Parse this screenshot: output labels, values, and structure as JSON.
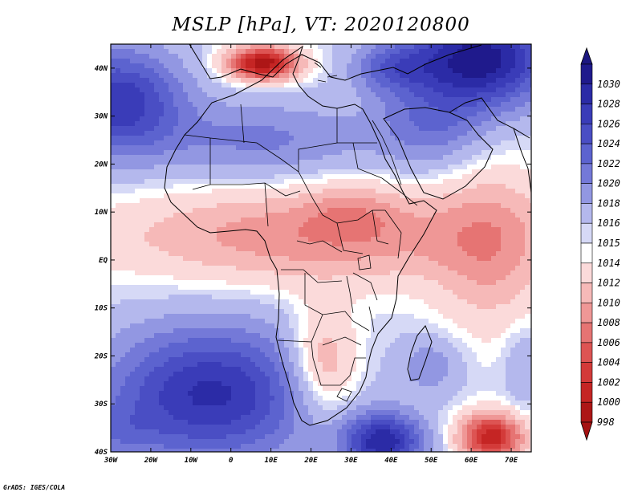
{
  "title": "MSLP [hPa], VT: 2020120800",
  "credit": "GrADS: IGES/COLA",
  "axes": {
    "x_ticks": [
      "30W",
      "20W",
      "10W",
      "0",
      "10E",
      "20E",
      "30E",
      "40E",
      "50E",
      "60E",
      "70E"
    ],
    "y_ticks": [
      "40S",
      "30S",
      "20S",
      "10S",
      "EQ",
      "10N",
      "20N",
      "30N",
      "40N"
    ]
  },
  "colorbar": {
    "levels": [
      {
        "label": "1030",
        "color": "#1f1a8c"
      },
      {
        "label": "1028",
        "color": "#2b2ba6"
      },
      {
        "label": "1026",
        "color": "#3a3cb8"
      },
      {
        "label": "1024",
        "color": "#4a4ec4"
      },
      {
        "label": "1022",
        "color": "#5c63cf"
      },
      {
        "label": "1020",
        "color": "#7479d8"
      },
      {
        "label": "1018",
        "color": "#9297e2"
      },
      {
        "label": "1016",
        "color": "#b4b8ed"
      },
      {
        "label": "1015",
        "color": "#d6d9f6"
      },
      {
        "label": "1014",
        "color": "#ffffff"
      },
      {
        "label": "1012",
        "color": "#fbdada"
      },
      {
        "label": "1010",
        "color": "#f6b9b8"
      },
      {
        "label": "1008",
        "color": "#ef9796"
      },
      {
        "label": "1006",
        "color": "#e67473"
      },
      {
        "label": "1004",
        "color": "#dd5453"
      },
      {
        "label": "1002",
        "color": "#d33a39"
      },
      {
        "label": "1000",
        "color": "#c52524"
      },
      {
        "label": "998",
        "color": "#ad1616"
      }
    ],
    "top_arrow_color": "#1c1780",
    "bottom_arrow_color": "#a51212"
  },
  "field": {
    "background": 1015.5,
    "unit": "hPa",
    "features": [
      {
        "name": "azores-high",
        "lon": -28,
        "lat": 33,
        "value": 12,
        "rx": 16,
        "ry": 11
      },
      {
        "name": "north-africa-ridge",
        "lon": 8,
        "lat": 25,
        "value": 5,
        "rx": 26,
        "ry": 8
      },
      {
        "name": "arabia-high",
        "lon": 50,
        "lat": 28,
        "value": 5.5,
        "rx": 14,
        "ry": 9
      },
      {
        "name": "asia-high",
        "lon": 62,
        "lat": 42,
        "value": 16,
        "rx": 18,
        "ry": 10
      },
      {
        "name": "turkey-high",
        "lon": 40,
        "lat": 40,
        "value": 6,
        "rx": 10,
        "ry": 5
      },
      {
        "name": "mediterranean-low",
        "lon": 8,
        "lat": 41,
        "value": -17,
        "rx": 9,
        "ry": 3.5
      },
      {
        "name": "equatorial-trough",
        "lon": 20,
        "lat": 5,
        "value": -7,
        "rx": 50,
        "ry": 10
      },
      {
        "name": "sudan-low",
        "lon": 30,
        "lat": 10,
        "value": -3,
        "rx": 12,
        "ry": 6
      },
      {
        "name": "indian-ocean-trough",
        "lon": 65,
        "lat": 2,
        "value": -5,
        "rx": 14,
        "ry": 18
      },
      {
        "name": "south-atlantic-high",
        "lon": -5,
        "lat": -28,
        "value": 13,
        "rx": 26,
        "ry": 14
      },
      {
        "name": "south-atlantic-edge",
        "lon": -28,
        "lat": -36,
        "value": 3,
        "rx": 10,
        "ry": 6
      },
      {
        "name": "south-indian-high",
        "lon": 38,
        "lat": -38,
        "value": 14,
        "rx": 10,
        "ry": 6
      },
      {
        "name": "kalahari-low",
        "lon": 23,
        "lat": -22,
        "value": -7,
        "rx": 9,
        "ry": 11
      },
      {
        "name": "mozambique-high",
        "lon": 50,
        "lat": -22,
        "value": 4,
        "rx": 8,
        "ry": 6
      },
      {
        "name": "southern-low",
        "lon": 65,
        "lat": -37,
        "value": -15,
        "rx": 8,
        "ry": 5
      },
      {
        "name": "far-east-ridge",
        "lon": 73,
        "lat": -22,
        "value": 3,
        "rx": 5,
        "ry": 8
      }
    ]
  }
}
